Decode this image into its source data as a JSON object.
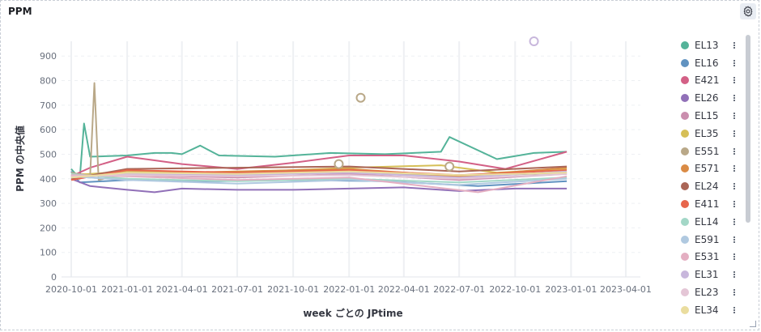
{
  "panel": {
    "title": "PPM"
  },
  "icons": {
    "settings": "gear-icon",
    "legend_action": "vertical-dots-icon",
    "resize": "resize-corner-icon"
  },
  "chart_data": {
    "type": "line",
    "title": "PPM",
    "xlabel": "week ごとの JPtime",
    "ylabel": "PPM の中央値",
    "x_ticks": [
      "2020-10-01",
      "2021-01-01",
      "2021-04-01",
      "2021-07-01",
      "2021-10-01",
      "2022-01-01",
      "2022-04-01",
      "2022-07-01",
      "2022-10-01",
      "2023-01-01",
      "2023-04-01"
    ],
    "x_range": [
      "2020-09-15",
      "2023-04-25"
    ],
    "y_ticks": [
      0,
      100,
      200,
      300,
      400,
      500,
      600,
      700,
      800,
      900
    ],
    "ylim": [
      0,
      960
    ],
    "grid": true,
    "legend_position": "right",
    "series": [
      {
        "name": "EL13",
        "color": "#54b399",
        "values": [
          [
            "2020-10-01",
            440
          ],
          [
            "2020-10-15",
            400
          ],
          [
            "2020-10-22",
            625
          ],
          [
            "2020-11-01",
            490
          ],
          [
            "2021-01-01",
            495
          ],
          [
            "2021-02-15",
            505
          ],
          [
            "2021-03-15",
            505
          ],
          [
            "2021-04-01",
            500
          ],
          [
            "2021-05-01",
            535
          ],
          [
            "2021-06-01",
            495
          ],
          [
            "2021-09-01",
            490
          ],
          [
            "2021-12-01",
            505
          ],
          [
            "2022-03-01",
            500
          ],
          [
            "2022-06-01",
            510
          ],
          [
            "2022-06-15",
            570
          ],
          [
            "2022-09-01",
            480
          ],
          [
            "2022-11-01",
            505
          ],
          [
            "2022-12-25",
            510
          ]
        ]
      },
      {
        "name": "EL16",
        "color": "#6092c0",
        "values": [
          [
            "2020-10-01",
            430
          ],
          [
            "2020-10-15",
            385
          ],
          [
            "2021-01-01",
            395
          ],
          [
            "2021-06-01",
            390
          ],
          [
            "2021-10-01",
            395
          ],
          [
            "2022-03-01",
            390
          ],
          [
            "2022-08-01",
            370
          ],
          [
            "2022-12-25",
            390
          ]
        ]
      },
      {
        "name": "E421",
        "color": "#d36086",
        "values": [
          [
            "2020-10-01",
            410
          ],
          [
            "2020-11-01",
            445
          ],
          [
            "2021-01-01",
            490
          ],
          [
            "2021-02-15",
            475
          ],
          [
            "2021-04-01",
            460
          ],
          [
            "2021-07-01",
            440
          ],
          [
            "2021-10-01",
            465
          ],
          [
            "2022-01-01",
            495
          ],
          [
            "2022-04-01",
            495
          ],
          [
            "2022-07-01",
            470
          ],
          [
            "2022-09-15",
            440
          ],
          [
            "2022-12-25",
            510
          ]
        ]
      },
      {
        "name": "EL26",
        "color": "#9170b8",
        "values": [
          [
            "2020-10-01",
            400
          ],
          [
            "2020-11-01",
            370
          ],
          [
            "2021-01-01",
            355
          ],
          [
            "2021-02-15",
            345
          ],
          [
            "2021-04-01",
            360
          ],
          [
            "2021-07-01",
            355
          ],
          [
            "2021-10-01",
            355
          ],
          [
            "2022-01-01",
            360
          ],
          [
            "2022-04-01",
            365
          ],
          [
            "2022-07-01",
            350
          ],
          [
            "2022-10-01",
            360
          ],
          [
            "2022-12-25",
            360
          ]
        ]
      },
      {
        "name": "EL15",
        "color": "#ca8eae",
        "values": [
          [
            "2020-10-01",
            420
          ],
          [
            "2021-01-01",
            415
          ],
          [
            "2021-07-01",
            405
          ],
          [
            "2022-01-01",
            420
          ],
          [
            "2022-07-01",
            395
          ],
          [
            "2022-12-25",
            420
          ]
        ]
      },
      {
        "name": "EL35",
        "color": "#d6bf57",
        "values": [
          [
            "2020-10-01",
            415
          ],
          [
            "2021-01-01",
            430
          ],
          [
            "2021-07-01",
            425
          ],
          [
            "2022-01-01",
            445
          ],
          [
            "2022-06-01",
            455
          ],
          [
            "2022-09-01",
            425
          ],
          [
            "2022-12-25",
            440
          ]
        ]
      },
      {
        "name": "E551",
        "color": "#b9a888",
        "values": [
          [
            "2020-10-01",
            425
          ],
          [
            "2020-11-01",
            410
          ],
          [
            "2020-11-08",
            790
          ],
          [
            "2020-11-15",
            395
          ],
          [
            "2021-01-01",
            425
          ],
          [
            "2021-07-01",
            420
          ],
          [
            "2022-01-01",
            430
          ],
          [
            "2022-07-01",
            410
          ],
          [
            "2022-12-25",
            425
          ]
        ]
      },
      {
        "name": "E571",
        "color": "#da8b45",
        "values": [
          [
            "2020-10-01",
            405
          ],
          [
            "2021-01-01",
            420
          ],
          [
            "2021-07-01",
            430
          ],
          [
            "2022-01-01",
            440
          ],
          [
            "2022-07-01",
            410
          ],
          [
            "2022-12-25",
            445
          ]
        ]
      },
      {
        "name": "EL24",
        "color": "#aa6556",
        "values": [
          [
            "2020-10-01",
            400
          ],
          [
            "2021-01-01",
            440
          ],
          [
            "2021-07-01",
            445
          ],
          [
            "2022-01-01",
            450
          ],
          [
            "2022-07-01",
            430
          ],
          [
            "2022-12-25",
            450
          ]
        ]
      },
      {
        "name": "E411",
        "color": "#e7664c",
        "values": [
          [
            "2020-10-01",
            395
          ],
          [
            "2021-01-01",
            435
          ],
          [
            "2021-07-01",
            425
          ],
          [
            "2022-01-01",
            435
          ],
          [
            "2022-07-01",
            415
          ],
          [
            "2022-12-25",
            435
          ]
        ]
      },
      {
        "name": "EL14",
        "color": "#a3d7c7",
        "values": [
          [
            "2020-10-01",
            420
          ],
          [
            "2021-01-01",
            400
          ],
          [
            "2021-07-01",
            390
          ],
          [
            "2022-01-01",
            400
          ],
          [
            "2022-07-01",
            385
          ],
          [
            "2022-12-25",
            405
          ]
        ]
      },
      {
        "name": "E591",
        "color": "#b0c9e0",
        "values": [
          [
            "2020-10-01",
            410
          ],
          [
            "2021-01-01",
            395
          ],
          [
            "2021-07-01",
            380
          ],
          [
            "2022-01-01",
            395
          ],
          [
            "2022-07-01",
            375
          ],
          [
            "2022-12-25",
            400
          ]
        ]
      },
      {
        "name": "E531",
        "color": "#e4afc2",
        "values": [
          [
            "2020-10-01",
            415
          ],
          [
            "2021-01-01",
            410
          ],
          [
            "2021-07-01",
            395
          ],
          [
            "2022-01-01",
            405
          ],
          [
            "2022-08-01",
            345
          ],
          [
            "2022-12-25",
            410
          ]
        ]
      },
      {
        "name": "EL31",
        "color": "#c8b7dc",
        "values": [
          [
            "2020-10-01",
            405
          ],
          [
            "2021-01-01",
            420
          ],
          [
            "2021-07-01",
            415
          ],
          [
            "2022-01-01",
            425
          ],
          [
            "2022-07-01",
            405
          ],
          [
            "2022-12-25",
            430
          ]
        ]
      },
      {
        "name": "EL23",
        "color": "#e4c6d6",
        "values": [
          [
            "2020-10-01",
            410
          ],
          [
            "2021-01-01",
            415
          ],
          [
            "2021-07-01",
            410
          ],
          [
            "2022-01-01",
            415
          ],
          [
            "2022-07-01",
            400
          ],
          [
            "2022-12-25",
            420
          ]
        ]
      },
      {
        "name": "EL34",
        "color": "#eadd9f",
        "values": [
          [
            "2020-10-01",
            405
          ],
          [
            "2021-01-01",
            425
          ],
          [
            "2021-07-01",
            420
          ],
          [
            "2022-01-01",
            430
          ],
          [
            "2022-07-01",
            415
          ],
          [
            "2022-12-25",
            425
          ]
        ]
      }
    ],
    "points": [
      {
        "series": "E551",
        "x": "2022-01-20",
        "y": 730
      },
      {
        "series": "E551",
        "x": "2021-12-15",
        "y": 460
      },
      {
        "series": "E551",
        "x": "2022-06-15",
        "y": 450
      },
      {
        "series": "EL31",
        "x": "2022-11-01",
        "y": 960
      }
    ]
  }
}
